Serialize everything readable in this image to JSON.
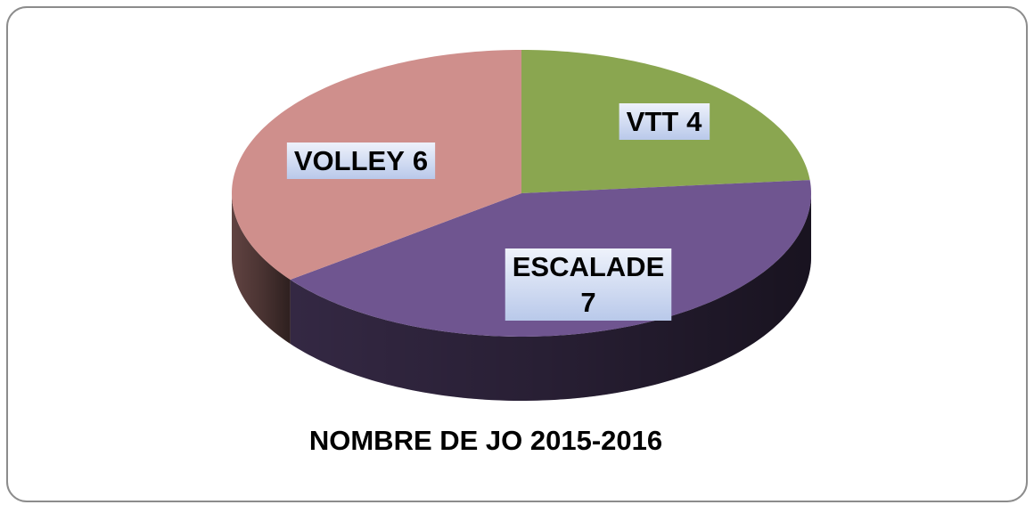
{
  "chart_data": {
    "type": "pie",
    "title": "NOMBRE DE JO 2015-2016",
    "categories": [
      "VTT",
      "ESCALADE",
      "VOLLEY"
    ],
    "values": [
      4,
      7,
      6
    ],
    "colors": [
      "#8aa650",
      "#6f5590",
      "#cf8f8c"
    ]
  }
}
